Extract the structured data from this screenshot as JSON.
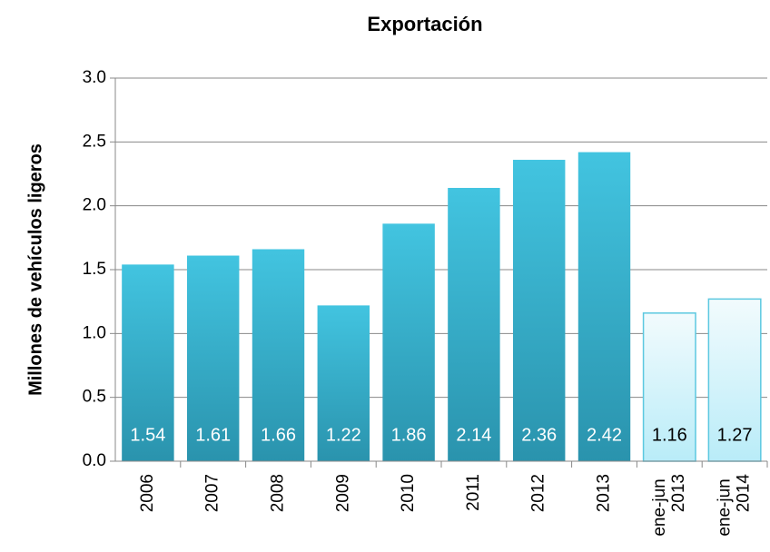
{
  "chart_data": {
    "type": "bar",
    "title": "Exportación",
    "y_label": "Millones de vehículos ligeros",
    "categories": [
      "2006",
      "2007",
      "2008",
      "2009",
      "2010",
      "2011",
      "2012",
      "2013",
      "ene-jun 2013",
      "ene-jun 2014"
    ],
    "values": [
      1.54,
      1.61,
      1.66,
      1.22,
      1.86,
      2.14,
      2.36,
      2.42,
      1.16,
      1.27
    ],
    "colors": [
      "#3bbcd9",
      "#3bbcd9",
      "#3bbcd9",
      "#3bbcd9",
      "#3bbcd9",
      "#3bbcd9",
      "#3bbcd9",
      "#3bbcd9",
      "#e3f7fc",
      "#e3f7fc"
    ],
    "ylim": [
      0,
      3
    ],
    "yticks": [
      {
        "value": 0,
        "label": "0.0"
      },
      0.5,
      {
        "value": 1,
        "label": "1.0"
      },
      1.5,
      {
        "value": 2,
        "label": "2.0"
      },
      2.5,
      {
        "value": 3,
        "label": "3.0"
      }
    ],
    "grid": true
  }
}
